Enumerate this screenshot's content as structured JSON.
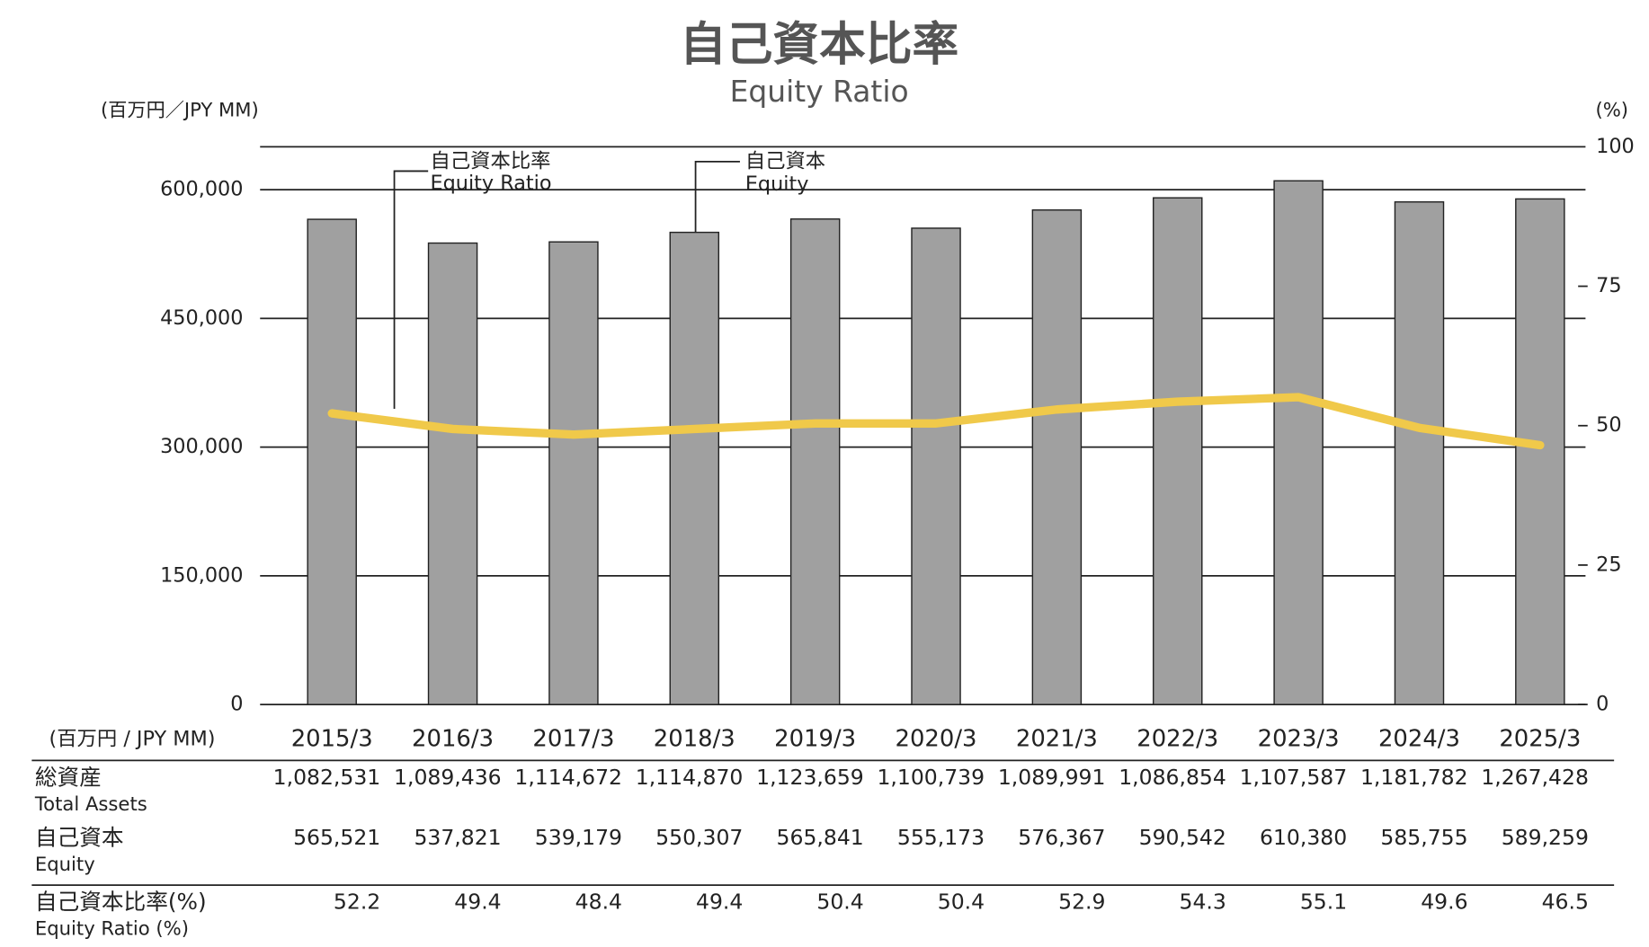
{
  "chart_data": {
    "type": "bar",
    "title": "自己資本比率",
    "subtitle": "Equity Ratio",
    "y_label": "(百万円／JPY MM)",
    "y2_label": "(%)",
    "categories": [
      "2015/3",
      "2016/3",
      "2017/3",
      "2018/3",
      "2019/3",
      "2020/3",
      "2021/3",
      "2022/3",
      "2023/3",
      "2024/3",
      "2025/3"
    ],
    "series": [
      {
        "name": "自己資本",
        "name_en": "Equity",
        "color": "#a0a0a0",
        "values": [
          565521,
          537821,
          539179,
          550307,
          565841,
          555173,
          576367,
          590542,
          610380,
          585755,
          589259
        ],
        "value_labels": [
          "565,521",
          "537,821",
          "539,179",
          "550,307",
          "565,841",
          "555,173",
          "576,367",
          "590,542",
          "610,380",
          "585,755",
          "589,259"
        ]
      },
      {
        "name": "自己資本比率",
        "name_en": "Equity Ratio",
        "color": "#f0c94a",
        "type": "line",
        "axis": "y2",
        "values": [
          52.2,
          49.4,
          48.4,
          49.4,
          50.4,
          50.4,
          52.9,
          54.3,
          55.1,
          49.6,
          46.5
        ]
      }
    ],
    "ylim": [
      0,
      650000
    ],
    "yticks": [
      0,
      {
        "value": 150000,
        "label": "150,000"
      },
      {
        "value": 300000,
        "label": "300,000"
      },
      {
        "value": 450000,
        "label": "450,000"
      },
      {
        "value": 600000,
        "label": "600,000"
      }
    ],
    "y2lim": [
      0,
      100
    ],
    "y2ticks": [
      0,
      25,
      50,
      75,
      100
    ],
    "grid": true
  },
  "table": {
    "header": "(百万円 / JPY MM)",
    "rows": [
      {
        "label": "総資産",
        "label_en": "Total Assets",
        "values": [
          "1,082,531",
          "1,089,436",
          "1,114,672",
          "1,114,870",
          "1,123,659",
          "1,100,739",
          "1,089,991",
          "1,086,854",
          "1,107,587",
          "1,181,782",
          "1,267,428"
        ]
      },
      {
        "label": "自己資本",
        "label_en": "Equity"
      },
      {
        "label": "自己資本比率(%)",
        "label_en": "Equity Ratio (%)"
      }
    ]
  }
}
